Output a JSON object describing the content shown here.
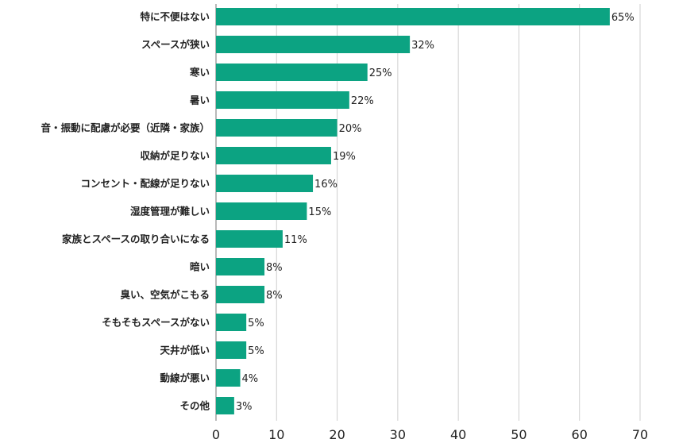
{
  "chart_data": {
    "type": "bar",
    "orientation": "horizontal",
    "title": "",
    "xlabel": "",
    "ylabel": "",
    "xlim": [
      0,
      70
    ],
    "x_ticks": [
      0,
      10,
      20,
      30,
      40,
      50,
      60,
      70
    ],
    "grid": "vertical",
    "bar_color": "#0ca382",
    "value_suffix": "%",
    "categories": [
      "特に不便はない",
      "スペースが狭い",
      "寒い",
      "暑い",
      "音・振動に配慮が必要（近隣・家族）",
      "収納が足りない",
      "コンセント・配線が足りない",
      "湿度管理が難しい",
      "家族とスペースの取り合いになる",
      "暗い",
      "臭い、空気がこもる",
      "そもそもスペースがない",
      "天井が低い",
      "動線が悪い",
      "その他"
    ],
    "values": [
      65,
      32,
      25,
      22,
      20,
      19,
      16,
      15,
      11,
      8,
      8,
      5,
      5,
      4,
      3
    ]
  }
}
